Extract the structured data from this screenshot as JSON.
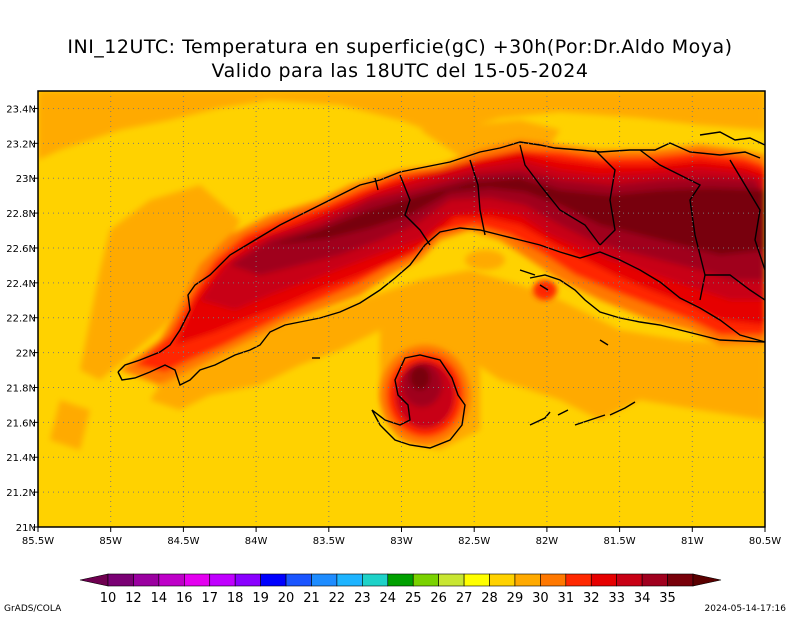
{
  "title": {
    "line1": "INI_12UTC: Temperatura en superficie(gC) +30h(Por:Dr.Aldo Moya)",
    "line2": "Valido para las 18UTC del 15-05-2024"
  },
  "map": {
    "lon_range": [
      -85.5,
      -80.5
    ],
    "lat_range": [
      21,
      23.5
    ],
    "lon_ticks": [
      "85.5W",
      "85W",
      "84.5W",
      "84W",
      "83.5W",
      "83W",
      "82.5W",
      "82W",
      "81.5W",
      "81W",
      "80.5W"
    ],
    "lat_ticks": [
      "21N",
      "21.2N",
      "21.4N",
      "21.6N",
      "21.8N",
      "22N",
      "22.2N",
      "22.4N",
      "22.6N",
      "22.8N",
      "23N",
      "23.2N",
      "23.4N"
    ],
    "grid": "dotted"
  },
  "colorbar": {
    "labels": [
      "10",
      "12",
      "14",
      "16",
      "17",
      "18",
      "19",
      "20",
      "21",
      "22",
      "23",
      "24",
      "25",
      "26",
      "27",
      "28",
      "29",
      "30",
      "31",
      "32",
      "33",
      "34",
      "35"
    ],
    "colors": [
      "#7a0074",
      "#9a00a0",
      "#be00c8",
      "#e400f0",
      "#c000ff",
      "#8a00ff",
      "#0000ff",
      "#1a55ff",
      "#1e8cff",
      "#1eb4ff",
      "#1ed2c8",
      "#00a000",
      "#7ad200",
      "#c8e632",
      "#ffff00",
      "#ffd200",
      "#ffaa00",
      "#ff7800",
      "#ff2800",
      "#e60000",
      "#c80014",
      "#a0001e",
      "#78000a"
    ],
    "end_left": "#6e0050",
    "end_right": "#5a0000"
  },
  "footer": {
    "left": "GrADS/COLA",
    "right": "2024-05-14-17:16"
  }
}
